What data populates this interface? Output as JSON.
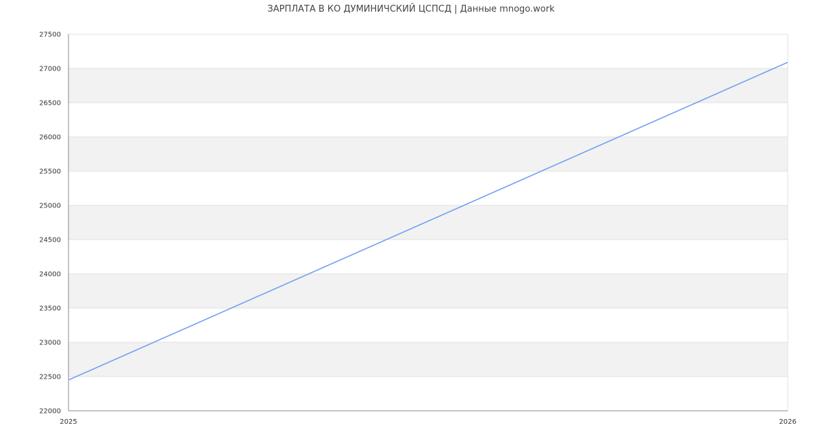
{
  "chart_data": {
    "type": "line",
    "title": "ЗАРПЛАТА В КО ДУМИНИЧСКИЙ ЦСПСД | Данные mnogo.work",
    "xlabel": "",
    "ylabel": "",
    "x_ticks": [
      "2025",
      "2026"
    ],
    "y_ticks": [
      22000,
      22500,
      23000,
      23500,
      24000,
      24500,
      25000,
      25500,
      26000,
      26500,
      27000,
      27500
    ],
    "ylim": [
      22000,
      27500
    ],
    "xlim": [
      2025,
      2026
    ],
    "grid": true,
    "series": [
      {
        "x": [
          2025,
          2026
        ],
        "values": [
          22450,
          27090
        ],
        "color": "#739ef5"
      }
    ]
  }
}
